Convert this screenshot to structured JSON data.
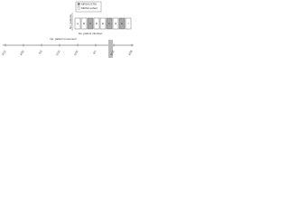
{
  "legend": [
    {
      "label": "MRSA (ST8)",
      "shaded": true
    },
    {
      "label": "MRSA (other)",
      "shaded": false
    }
  ],
  "panel": {
    "y_label": "No. patients",
    "cells": [
      {
        "label": "A",
        "shaded": false
      },
      {
        "label": "B",
        "shaded": false
      },
      {
        "label": "C",
        "shaded": true
      },
      {
        "label": "D",
        "shaded": false
      },
      {
        "label": "E",
        "shaded": false
      },
      {
        "label": "F",
        "shaded": true
      },
      {
        "label": "G",
        "shaded": false
      },
      {
        "label": "H",
        "shaded": true
      },
      {
        "label": "I",
        "shaded": false
      }
    ]
  },
  "captions": {
    "top": "No. patient infection",
    "bottom": "No. patient movement"
  },
  "timeline": {
    "dates": [
      "4/12",
      "4/20",
      "5/3",
      "5/10",
      "5/22",
      "6/1",
      "6/15",
      "6/28"
    ]
  }
}
